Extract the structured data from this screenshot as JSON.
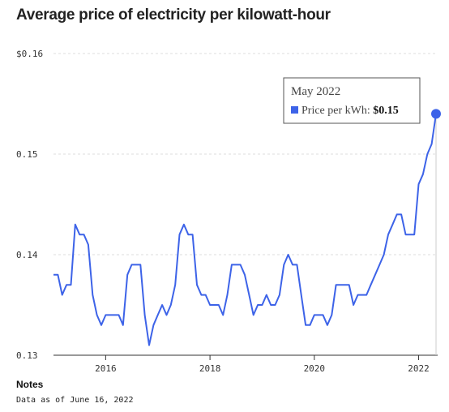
{
  "page": {
    "title": "Average price of electricity per kilowatt-hour",
    "notes_heading": "Notes",
    "notes_text": "Data as of June 16, 2022"
  },
  "tooltip": {
    "title": "May 2022",
    "label": "Price per kWh: ",
    "value": "$0.15"
  },
  "colors": {
    "series": "#3d63e8",
    "grid": "#dddddd",
    "axis": "#333333"
  },
  "chart_data": {
    "type": "line",
    "title": "Average price of electricity per kilowatt-hour",
    "xlabel": "",
    "ylabel": "",
    "ylim": [
      0.13,
      0.16
    ],
    "y_ticks": [
      0.13,
      0.14,
      0.15,
      0.16
    ],
    "y_tick_labels": [
      "0.13",
      "0.14",
      "0.15",
      "$0.16"
    ],
    "x_ticks": [
      2016,
      2018,
      2020,
      2022
    ],
    "x_tick_labels": [
      "2016",
      "2018",
      "2020",
      "2022"
    ],
    "xlim": [
      "2015-01",
      "2022-05"
    ],
    "grid": true,
    "legend": "none",
    "series": [
      {
        "x": [
          "2015-01",
          "2015-02",
          "2015-03",
          "2015-04",
          "2015-05",
          "2015-06",
          "2015-07",
          "2015-08",
          "2015-09",
          "2015-10",
          "2015-11",
          "2015-12",
          "2016-01",
          "2016-02",
          "2016-03",
          "2016-04",
          "2016-05",
          "2016-06",
          "2016-07",
          "2016-08",
          "2016-09",
          "2016-10",
          "2016-11",
          "2016-12",
          "2017-01",
          "2017-02",
          "2017-03",
          "2017-04",
          "2017-05",
          "2017-06",
          "2017-07",
          "2017-08",
          "2017-09",
          "2017-10",
          "2017-11",
          "2017-12",
          "2018-01",
          "2018-02",
          "2018-03",
          "2018-04",
          "2018-05",
          "2018-06",
          "2018-07",
          "2018-08",
          "2018-09",
          "2018-10",
          "2018-11",
          "2018-12",
          "2019-01",
          "2019-02",
          "2019-03",
          "2019-04",
          "2019-05",
          "2019-06",
          "2019-07",
          "2019-08",
          "2019-09",
          "2019-10",
          "2019-11",
          "2019-12",
          "2020-01",
          "2020-02",
          "2020-03",
          "2020-04",
          "2020-05",
          "2020-06",
          "2020-07",
          "2020-08",
          "2020-09",
          "2020-10",
          "2020-11",
          "2020-12",
          "2021-01",
          "2021-02",
          "2021-03",
          "2021-04",
          "2021-05",
          "2021-06",
          "2021-07",
          "2021-08",
          "2021-09",
          "2021-10",
          "2021-11",
          "2021-12",
          "2022-01",
          "2022-02",
          "2022-03",
          "2022-04",
          "2022-05"
        ],
        "values": [
          0.138,
          0.138,
          0.136,
          0.137,
          0.137,
          0.143,
          0.142,
          0.142,
          0.141,
          0.136,
          0.134,
          0.133,
          0.134,
          0.134,
          0.134,
          0.134,
          0.133,
          0.138,
          0.139,
          0.139,
          0.139,
          0.134,
          0.131,
          0.133,
          0.134,
          0.135,
          0.134,
          0.135,
          0.137,
          0.142,
          0.143,
          0.142,
          0.142,
          0.137,
          0.136,
          0.136,
          0.135,
          0.135,
          0.135,
          0.134,
          0.136,
          0.139,
          0.139,
          0.139,
          0.138,
          0.136,
          0.134,
          0.135,
          0.135,
          0.136,
          0.135,
          0.135,
          0.136,
          0.139,
          0.14,
          0.139,
          0.139,
          0.136,
          0.133,
          0.133,
          0.134,
          0.134,
          0.134,
          0.133,
          0.134,
          0.137,
          0.137,
          0.137,
          0.137,
          0.135,
          0.136,
          0.136,
          0.136,
          0.137,
          0.138,
          0.139,
          0.14,
          0.142,
          0.143,
          0.144,
          0.144,
          0.142,
          0.142,
          0.142,
          0.147,
          0.148,
          0.15,
          0.151,
          0.154
        ]
      }
    ],
    "highlight": {
      "x": "2022-05",
      "value": 0.154
    }
  }
}
